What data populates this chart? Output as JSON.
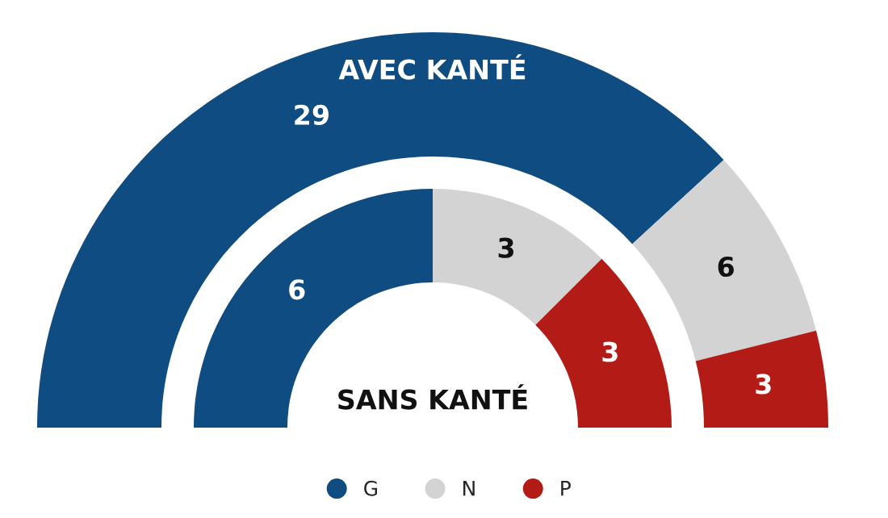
{
  "chart_data": {
    "type": "donut",
    "categories": [
      "G",
      "N",
      "P"
    ],
    "colors": [
      "#0f4c81",
      "#d3d3d3",
      "#b31b17"
    ],
    "data_labels": true,
    "legend": "bottom",
    "series": [
      {
        "name": "AVEC KANTÉ",
        "values": [
          29,
          6,
          3
        ]
      },
      {
        "name": "SANS KANTÉ",
        "values": [
          6,
          3,
          3
        ]
      }
    ]
  }
}
